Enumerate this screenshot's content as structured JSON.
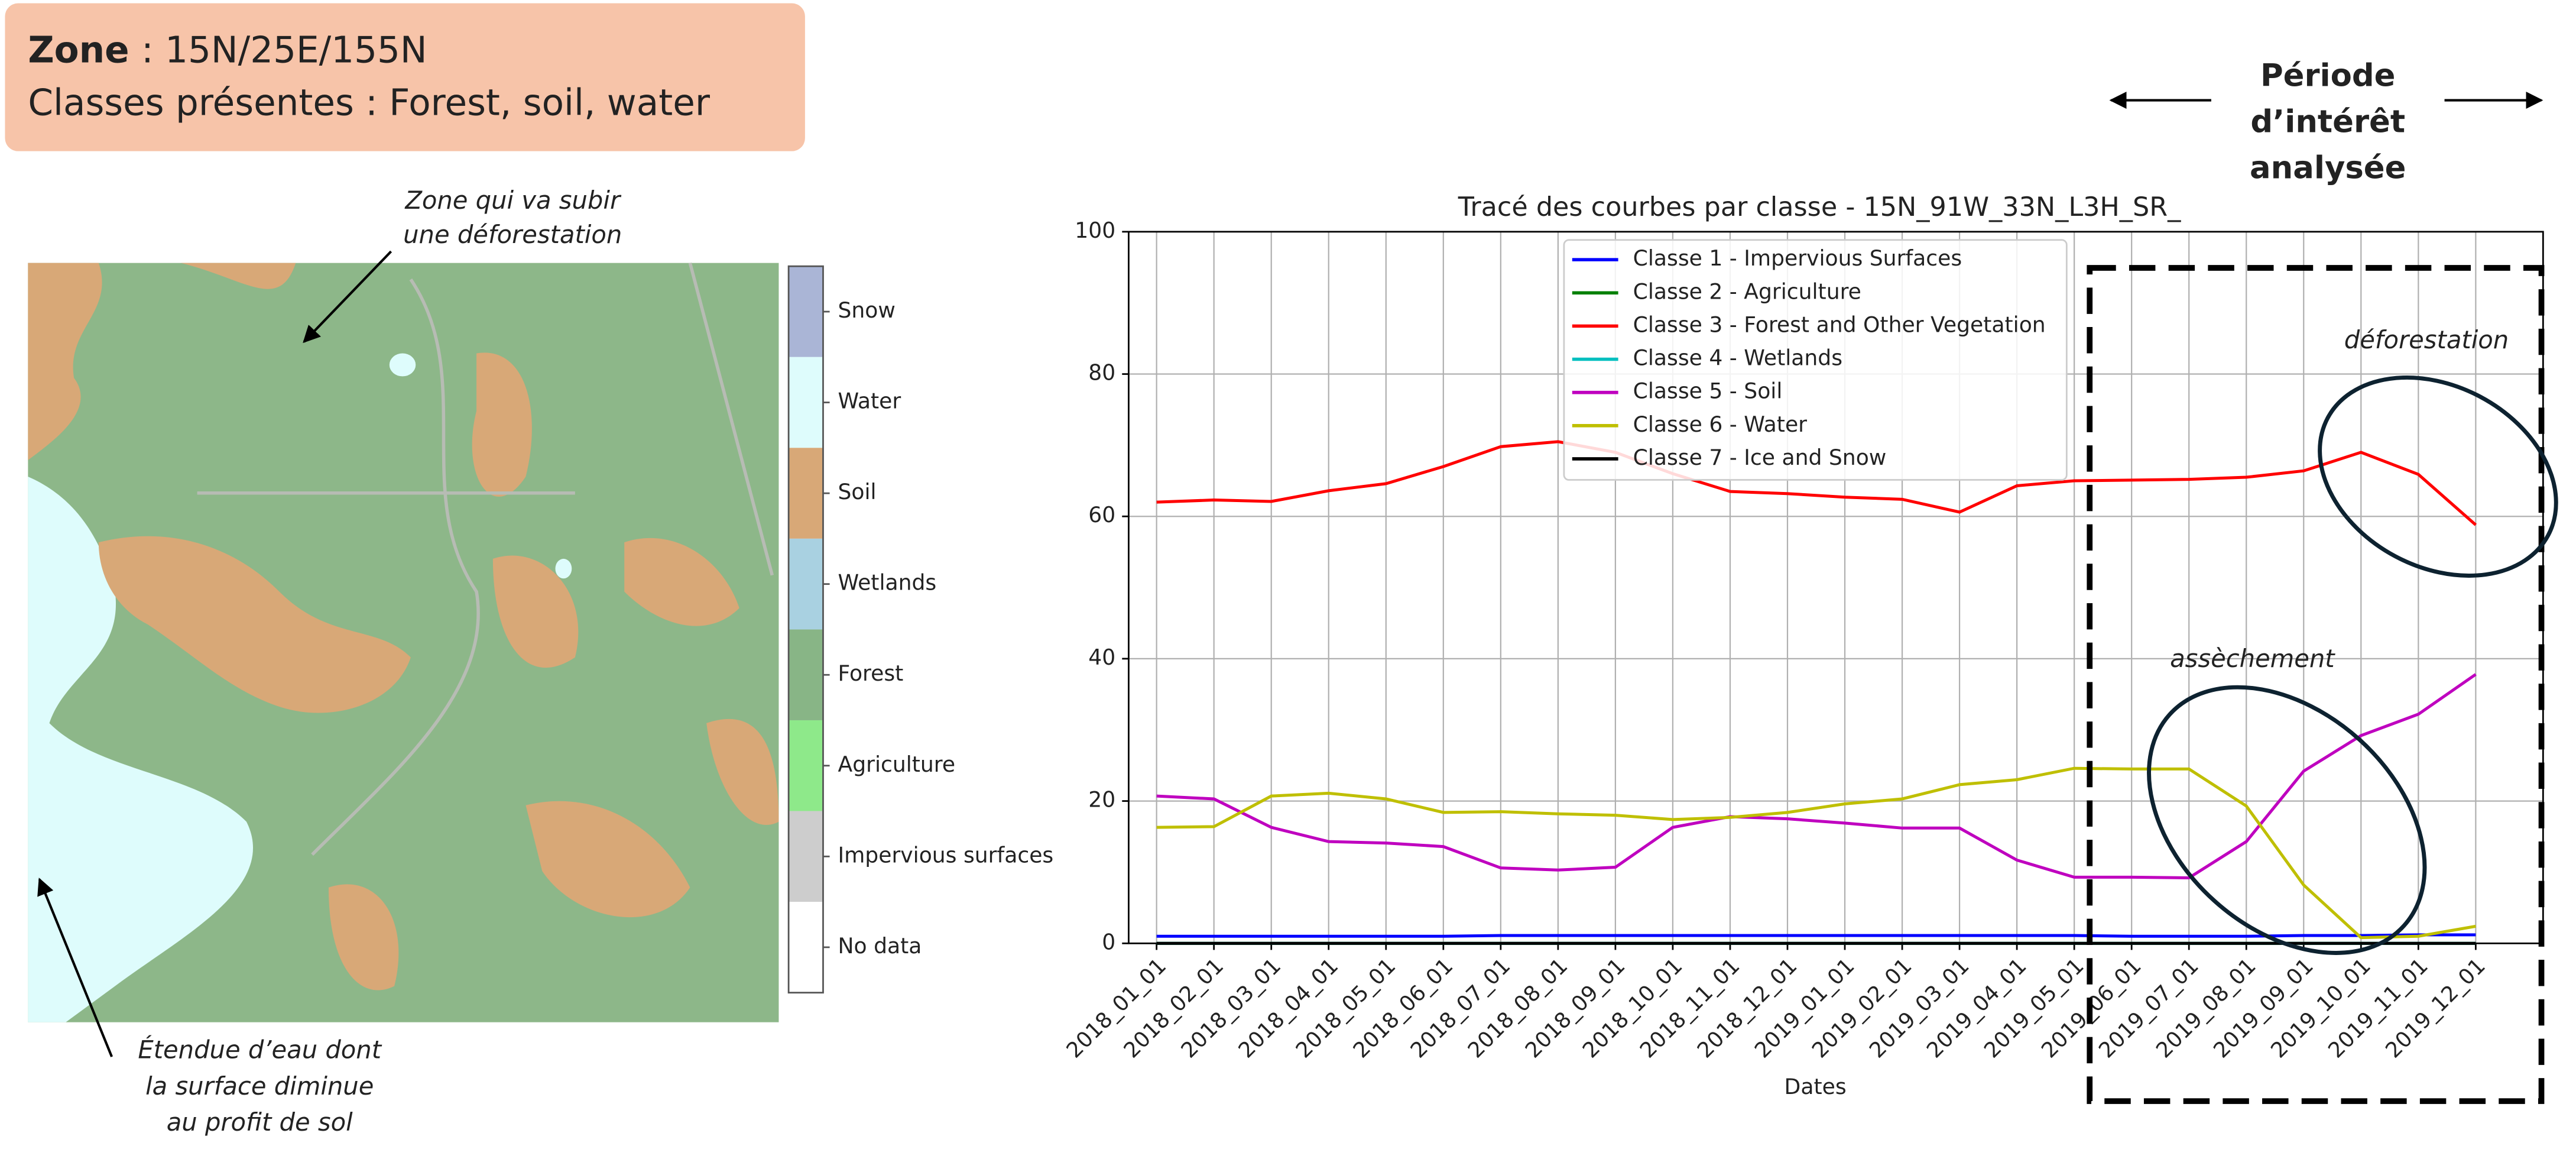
{
  "header": {
    "zone_label": "Zone",
    "zone_value": ": 15N/25E/155N",
    "classes": "Classes présentes : Forest, soil, water"
  },
  "map": {
    "legend": [
      {
        "label": "Snow",
        "color": "#aab5d6"
      },
      {
        "label": "Water",
        "color": "#defcfc"
      },
      {
        "label": "Soil",
        "color": "#d8a877"
      },
      {
        "label": "Wetlands",
        "color": "#a9d1e1"
      },
      {
        "label": "Forest",
        "color": "#88b586"
      },
      {
        "label": "Agriculture",
        "color": "#8ee98a"
      },
      {
        "label": "Impervious surfaces",
        "color": "#cdcdcd"
      },
      {
        "label": "No data",
        "color": "#ffffff"
      }
    ]
  },
  "annotations": {
    "deforestation_zone": [
      "Zone qui va subir",
      "une déforestation"
    ],
    "water_extent": [
      "Étendue d’eau dont",
      "la surface diminue",
      "au profit de sol"
    ],
    "period": [
      "Période",
      "d’intérêt",
      "analysée"
    ],
    "deforestation": "déforestation",
    "drying": "assèchement"
  },
  "chart_data": {
    "type": "line",
    "title": "Tracé des courbes par classe - 15N_91W_33N_L3H_SR_",
    "xlabel": "Dates",
    "categories": [
      "2018_01_01",
      "2018_02_01",
      "2018_03_01",
      "2018_04_01",
      "2018_05_01",
      "2018_06_01",
      "2018_07_01",
      "2018_08_01",
      "2018_09_01",
      "2018_10_01",
      "2018_11_01",
      "2018_12_01",
      "2019_01_01",
      "2019_02_01",
      "2019_03_01",
      "2019_04_01",
      "2019_05_01",
      "2019_06_01",
      "2019_07_01",
      "2019_08_01",
      "2019_09_01",
      "2019_10_01",
      "2019_11_01",
      "2019_12_01"
    ],
    "ylim": [
      0,
      100
    ],
    "yticks": [
      0,
      20,
      40,
      60,
      80,
      100
    ],
    "grid": true,
    "legend": "upper center",
    "series": [
      {
        "name": "Classe 1 - Impervious Surfaces",
        "color": "#0000ff",
        "values": [
          1.0,
          1.0,
          1.0,
          1.0,
          1.0,
          1.0,
          1.1,
          1.1,
          1.1,
          1.1,
          1.1,
          1.1,
          1.1,
          1.1,
          1.1,
          1.1,
          1.1,
          1.0,
          1.0,
          1.0,
          1.1,
          1.1,
          1.2,
          1.2
        ]
      },
      {
        "name": "Classe 2 - Agriculture",
        "color": "#008000",
        "values": [
          0,
          0,
          0,
          0,
          0,
          0,
          0,
          0,
          0,
          0,
          0,
          0,
          0,
          0,
          0,
          0,
          0,
          0,
          0,
          0,
          0,
          0,
          0,
          0
        ]
      },
      {
        "name": "Classe 3 - Forest and Other Vegetation",
        "color": "#ff0000",
        "values": [
          62.0,
          62.3,
          62.1,
          63.6,
          64.6,
          67.0,
          69.8,
          70.5,
          69.0,
          66.0,
          63.5,
          63.2,
          62.7,
          62.4,
          60.6,
          64.3,
          65.0,
          65.1,
          65.2,
          65.5,
          66.4,
          69.0,
          65.9,
          58.8
        ]
      },
      {
        "name": "Classe 4 - Wetlands",
        "color": "#00bfbf",
        "values": [
          0,
          0,
          0,
          0,
          0,
          0,
          0,
          0,
          0,
          0,
          0,
          0,
          0,
          0,
          0,
          0,
          0,
          0,
          0,
          0,
          0,
          0,
          0,
          0
        ]
      },
      {
        "name": "Classe 5 - Soil",
        "color": "#bf00bf",
        "values": [
          20.7,
          20.3,
          16.3,
          14.3,
          14.1,
          13.6,
          10.6,
          10.3,
          10.7,
          16.3,
          17.8,
          17.5,
          16.9,
          16.2,
          16.2,
          11.7,
          9.3,
          9.3,
          9.2,
          14.3,
          24.2,
          29.2,
          32.2,
          37.8
        ]
      },
      {
        "name": "Classe 6 - Water",
        "color": "#bfbf00",
        "values": [
          16.3,
          16.4,
          20.7,
          21.1,
          20.3,
          18.4,
          18.5,
          18.2,
          18.0,
          17.4,
          17.7,
          18.4,
          19.6,
          20.3,
          22.3,
          23.0,
          24.6,
          24.5,
          24.5,
          19.3,
          8.2,
          0.8,
          1.0,
          2.4
        ]
      },
      {
        "name": "Classe 7 - Ice and Snow",
        "color": "#000000",
        "values": [
          0,
          0,
          0,
          0,
          0,
          0,
          0,
          0,
          0,
          0,
          0,
          0,
          0,
          0,
          0,
          0,
          0,
          0,
          0,
          0,
          0,
          0,
          0,
          0
        ]
      }
    ]
  }
}
